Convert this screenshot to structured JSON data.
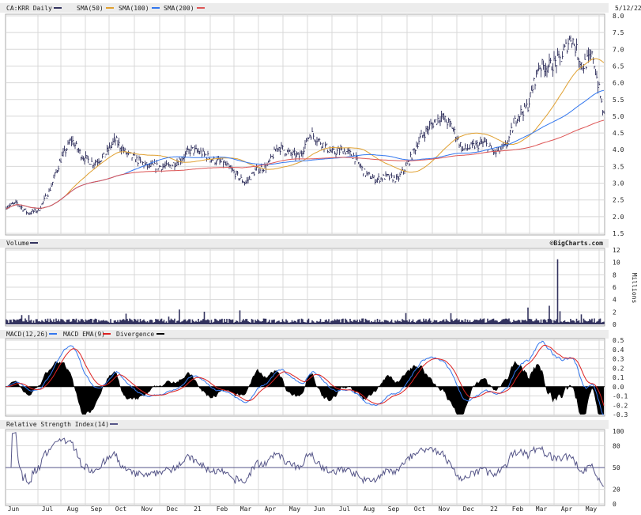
{
  "header": {
    "symbol_label": "CA:KRR Daily",
    "sma50": "SMA(50)",
    "sma100": "SMA(100)",
    "sma200": "SMA(200)",
    "date": "5/12/22"
  },
  "volume_header": {
    "label": "Volume",
    "brand": "©BigCharts.com",
    "unit": "Millions"
  },
  "macd_header": {
    "macd": "MACD(12,26)",
    "ema": "MACD EMA(9)",
    "div": "Divergence"
  },
  "rsi_header": {
    "label": "Relative Strength Index(14)"
  },
  "colors": {
    "price": "#33335f",
    "sma50": "#e0a030",
    "sma100": "#3377ee",
    "sma200": "#dd5555",
    "macd": "#3377ee",
    "signal": "#dd2222",
    "divergence": "#000000",
    "rsi": "#555588"
  },
  "chart_data": [
    {
      "type": "ohlc",
      "name": "price",
      "date_range": [
        "2020-05-12",
        "2022-05-12"
      ],
      "ylim": [
        1.5,
        8.0
      ],
      "yticks": [
        "8.0",
        "7.5",
        "7.0",
        "6.5",
        "6.0",
        "5.5",
        "5.0",
        "4.5",
        "4.0",
        "3.5",
        "3.0",
        "2.5",
        "2.0",
        "1.5"
      ],
      "close_sampled_evenly": [
        2.3,
        2.4,
        2.1,
        2.2,
        2.8,
        3.7,
        4.3,
        3.8,
        3.6,
        3.8,
        4.3,
        3.9,
        3.7,
        3.5,
        3.5,
        3.5,
        3.7,
        4.0,
        3.9,
        3.7,
        3.6,
        3.3,
        3.0,
        3.4,
        3.5,
        4.1,
        3.9,
        3.8,
        4.5,
        4.2,
        3.9,
        4.0,
        3.8,
        3.3,
        3.1,
        3.2,
        3.1,
        3.6,
        4.3,
        4.7,
        5.0,
        4.7,
        4.0,
        4.1,
        4.2,
        3.9,
        4.1,
        5.0,
        5.3,
        6.5,
        6.5,
        6.7,
        7.4,
        6.5,
        6.8,
        5.0
      ],
      "overlays": [
        "SMA(50)",
        "SMA(100)",
        "SMA(200)"
      ]
    },
    {
      "type": "bar",
      "name": "volume",
      "ylim": [
        0,
        12
      ],
      "yticks": [
        "12",
        "10",
        "8",
        "6",
        "4",
        "2",
        "0"
      ],
      "unit": "Millions",
      "typical": 0.6,
      "spikes": [
        {
          "month": "Mar 2022",
          "value": 10.5
        },
        {
          "month": "Mar 2022",
          "value": 3.0
        },
        {
          "month": "Jun 2020",
          "value": 1.5
        }
      ]
    },
    {
      "type": "line",
      "name": "macd",
      "ylim": [
        -0.3,
        0.5
      ],
      "yticks": [
        "0.5",
        "0.4",
        "0.3",
        "0.2",
        "0.1",
        "0.0",
        "-0.1",
        "-0.2",
        "-0.3"
      ]
    },
    {
      "type": "line",
      "name": "rsi",
      "ylim": [
        0,
        100
      ],
      "yticks": [
        "100",
        "80",
        "50",
        "20",
        "0"
      ]
    }
  ],
  "xaxis": {
    "labels": [
      "Jun",
      "Jul",
      "Aug",
      "Sep",
      "Oct",
      "Nov",
      "Dec",
      "21",
      "Feb",
      "Mar",
      "Apr",
      "May",
      "Jun",
      "Jul",
      "Aug",
      "Sep",
      "Oct",
      "Nov",
      "Dec",
      "22",
      "Feb",
      "Mar",
      "Apr",
      "May"
    ]
  }
}
